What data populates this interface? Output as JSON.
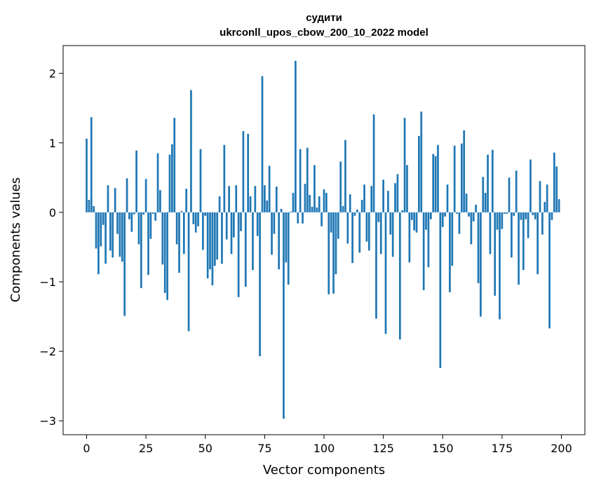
{
  "chart_data": {
    "type": "bar",
    "title": "судити",
    "subtitle": "ukrconll_upos_cbow_200_10_2022 model",
    "xlabel": "Vector components",
    "ylabel": "Components values",
    "xlim": [
      -9.9,
      209.9
    ],
    "ylim": [
      -3.2,
      2.4
    ],
    "xticks": [
      0,
      25,
      50,
      75,
      100,
      125,
      150,
      175,
      200
    ],
    "yticks": [
      -3,
      -2,
      -1,
      0,
      1,
      2
    ],
    "ytick_labels": [
      "−3",
      "−2",
      "−1",
      "0",
      "1",
      "2"
    ],
    "grid": false,
    "bar_color": "#1f77b4",
    "x": [
      0,
      1,
      2,
      3,
      4,
      5,
      6,
      7,
      8,
      9,
      10,
      11,
      12,
      13,
      14,
      15,
      16,
      17,
      18,
      19,
      20,
      21,
      22,
      23,
      24,
      25,
      26,
      27,
      28,
      29,
      30,
      31,
      32,
      33,
      34,
      35,
      36,
      37,
      38,
      39,
      40,
      41,
      42,
      43,
      44,
      45,
      46,
      47,
      48,
      49,
      50,
      51,
      52,
      53,
      54,
      55,
      56,
      57,
      58,
      59,
      60,
      61,
      62,
      63,
      64,
      65,
      66,
      67,
      68,
      69,
      70,
      71,
      72,
      73,
      74,
      75,
      76,
      77,
      78,
      79,
      80,
      81,
      82,
      83,
      84,
      85,
      86,
      87,
      88,
      89,
      90,
      91,
      92,
      93,
      94,
      95,
      96,
      97,
      98,
      99,
      100,
      101,
      102,
      103,
      104,
      105,
      106,
      107,
      108,
      109,
      110,
      111,
      112,
      113,
      114,
      115,
      116,
      117,
      118,
      119,
      120,
      121,
      122,
      123,
      124,
      125,
      126,
      127,
      128,
      129,
      130,
      131,
      132,
      133,
      134,
      135,
      136,
      137,
      138,
      139,
      140,
      141,
      142,
      143,
      144,
      145,
      146,
      147,
      148,
      149,
      150,
      151,
      152,
      153,
      154,
      155,
      156,
      157,
      158,
      159,
      160,
      161,
      162,
      163,
      164,
      165,
      166,
      167,
      168,
      169,
      170,
      171,
      172,
      173,
      174,
      175,
      176,
      177,
      178,
      179,
      180,
      181,
      182,
      183,
      184,
      185,
      186,
      187,
      188,
      189,
      190,
      191,
      192,
      193,
      194,
      195,
      196,
      197,
      198,
      199
    ],
    "values": [
      1.06,
      0.18,
      1.37,
      0.09,
      -0.52,
      -0.89,
      -0.49,
      -0.18,
      -0.74,
      0.39,
      -0.55,
      -0.65,
      0.35,
      -0.31,
      -0.64,
      -0.71,
      -1.49,
      0.49,
      -0.1,
      -0.28,
      -0.03,
      0.89,
      -0.46,
      -1.09,
      -0.03,
      0.48,
      -0.9,
      -0.38,
      -0.02,
      -0.12,
      0.85,
      0.32,
      -0.75,
      -1.16,
      -1.26,
      0.83,
      0.98,
      1.36,
      -0.46,
      -0.87,
      0.02,
      -0.6,
      0.34,
      -1.71,
      1.76,
      -0.17,
      -0.29,
      -0.2,
      0.91,
      -0.54,
      -0.05,
      -0.95,
      -0.82,
      -1.05,
      -0.77,
      -0.68,
      0.23,
      -0.74,
      0.97,
      -0.39,
      0.38,
      -0.6,
      -0.36,
      0.39,
      -1.22,
      -0.27,
      1.17,
      -1.07,
      1.13,
      0.23,
      -0.83,
      0.38,
      -0.34,
      -2.07,
      1.96,
      0.39,
      0.17,
      0.67,
      -0.61,
      -0.31,
      0.37,
      -0.82,
      0.05,
      -2.97,
      -0.72,
      -1.04,
      0.01,
      0.28,
      2.18,
      -0.16,
      0.91,
      -0.16,
      0.41,
      0.93,
      0.25,
      0.08,
      0.68,
      0.07,
      0.23,
      -0.2,
      0.33,
      0.28,
      -1.18,
      -0.29,
      -1.17,
      -0.89,
      -0.38,
      0.73,
      0.09,
      1.04,
      -0.45,
      0.26,
      -0.73,
      -0.05,
      0.04,
      -0.58,
      0.18,
      0.4,
      -0.42,
      -0.55,
      0.38,
      1.41,
      -1.53,
      -0.14,
      -0.6,
      0.47,
      -1.75,
      0.31,
      -0.32,
      -0.64,
      0.42,
      0.55,
      -1.83,
      0.03,
      1.36,
      0.68,
      -0.72,
      -0.11,
      -0.26,
      -0.29,
      1.1,
      1.45,
      -1.12,
      -0.25,
      -0.79,
      -0.1,
      0.84,
      0.81,
      0.97,
      -2.24,
      -0.21,
      -0.06,
      0.4,
      -1.15,
      -0.77,
      0.96,
      -0.02,
      -0.31,
      0.99,
      1.18,
      0.27,
      -0.06,
      -0.46,
      -0.13,
      0.11,
      -1.02,
      -1.5,
      0.51,
      0.28,
      0.83,
      -0.6,
      0.9,
      -1.2,
      -0.25,
      -1.54,
      -0.24,
      -0.02,
      -0.02,
      0.5,
      -0.65,
      -0.05,
      0.6,
      -1.04,
      -0.11,
      -0.83,
      -0.1,
      -0.37,
      0.76,
      -0.04,
      -0.1,
      -0.89,
      0.45,
      -0.32,
      0.15,
      0.4,
      -1.67,
      -0.11,
      0.86,
      0.66,
      0.19
    ]
  }
}
